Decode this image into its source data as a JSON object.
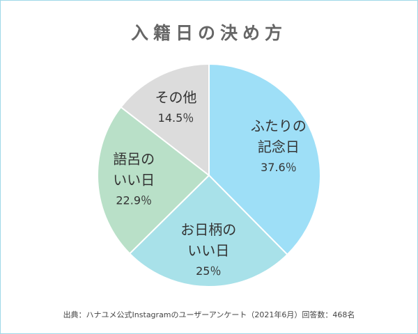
{
  "title": "入籍日の決め方",
  "source": "出典：ハナユメ公式Instagramのユーザーアンケート（2021年6月）回答数：468名",
  "chart_data": {
    "type": "pie",
    "title": "入籍日の決め方",
    "slices": [
      {
        "label_lines": [
          "ふたりの",
          "記念日"
        ],
        "value": 37.6,
        "value_label": "37.6％",
        "color": "#9edff7"
      },
      {
        "label_lines": [
          "お日柄の",
          "いい日"
        ],
        "value": 25,
        "value_label": "25％",
        "color": "#a8e1e9"
      },
      {
        "label_lines": [
          "語呂の",
          "いい日"
        ],
        "value": 22.9,
        "value_label": "22.9％",
        "color": "#b9e0c8"
      },
      {
        "label_lines": [
          "その他"
        ],
        "value": 14.5,
        "value_label": "14.5％",
        "color": "#dcdcdc"
      }
    ],
    "start": "12 o'clock",
    "direction": "clockwise",
    "legend": "none"
  }
}
